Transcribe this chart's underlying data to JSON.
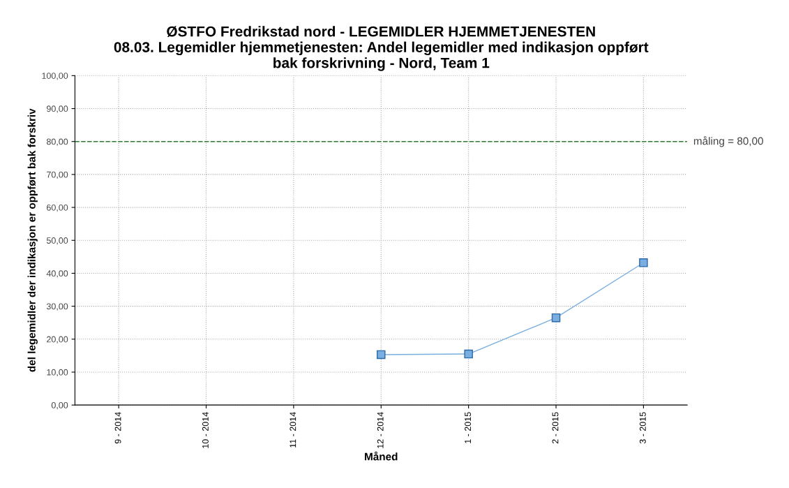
{
  "chart_data": {
    "type": "line",
    "title": "ØSTFO Fredrikstad nord - LEGEMIDLER HJEMMETJENESTEN\n08.03. Legemidler hjemmetjenesten: Andel legemidler med indikasjon oppført\nbak forskrivning - Nord, Team 1",
    "xlabel": "Måned",
    "ylabel": "del legemidler der indikasjon er oppført bak forskriv",
    "categories": [
      "9 - 2014",
      "10 - 2014",
      "11 - 2014",
      "12 - 2014",
      "1 - 2015",
      "2 - 2015",
      "3 - 2015"
    ],
    "series": [
      {
        "color": "#7aaee0",
        "values": [
          null,
          null,
          null,
          15.3,
          15.5,
          26.5,
          43.2
        ]
      }
    ],
    "ylim": [
      0,
      100
    ],
    "yticks": [
      {
        "value": 0,
        "label": "0,00"
      },
      {
        "value": 10,
        "label": "10,00"
      },
      {
        "value": 20,
        "label": "20,00"
      },
      {
        "value": 30,
        "label": "30,00"
      },
      {
        "value": 40,
        "label": "40,00"
      },
      {
        "value": 50,
        "label": "50,00"
      },
      {
        "value": 60,
        "label": "60,00"
      },
      {
        "value": 70,
        "label": "70,00"
      },
      {
        "value": 80,
        "label": "80,00"
      },
      {
        "value": 90,
        "label": "90,00"
      },
      {
        "value": 100,
        "label": "100,00"
      }
    ],
    "ref_lines": [
      {
        "axis": "y",
        "value": 80,
        "label": "måling = 80,00",
        "color": "#2e7d32",
        "line_style": "dashed"
      }
    ],
    "grid": true,
    "marker": "square",
    "line_style": "solid"
  }
}
